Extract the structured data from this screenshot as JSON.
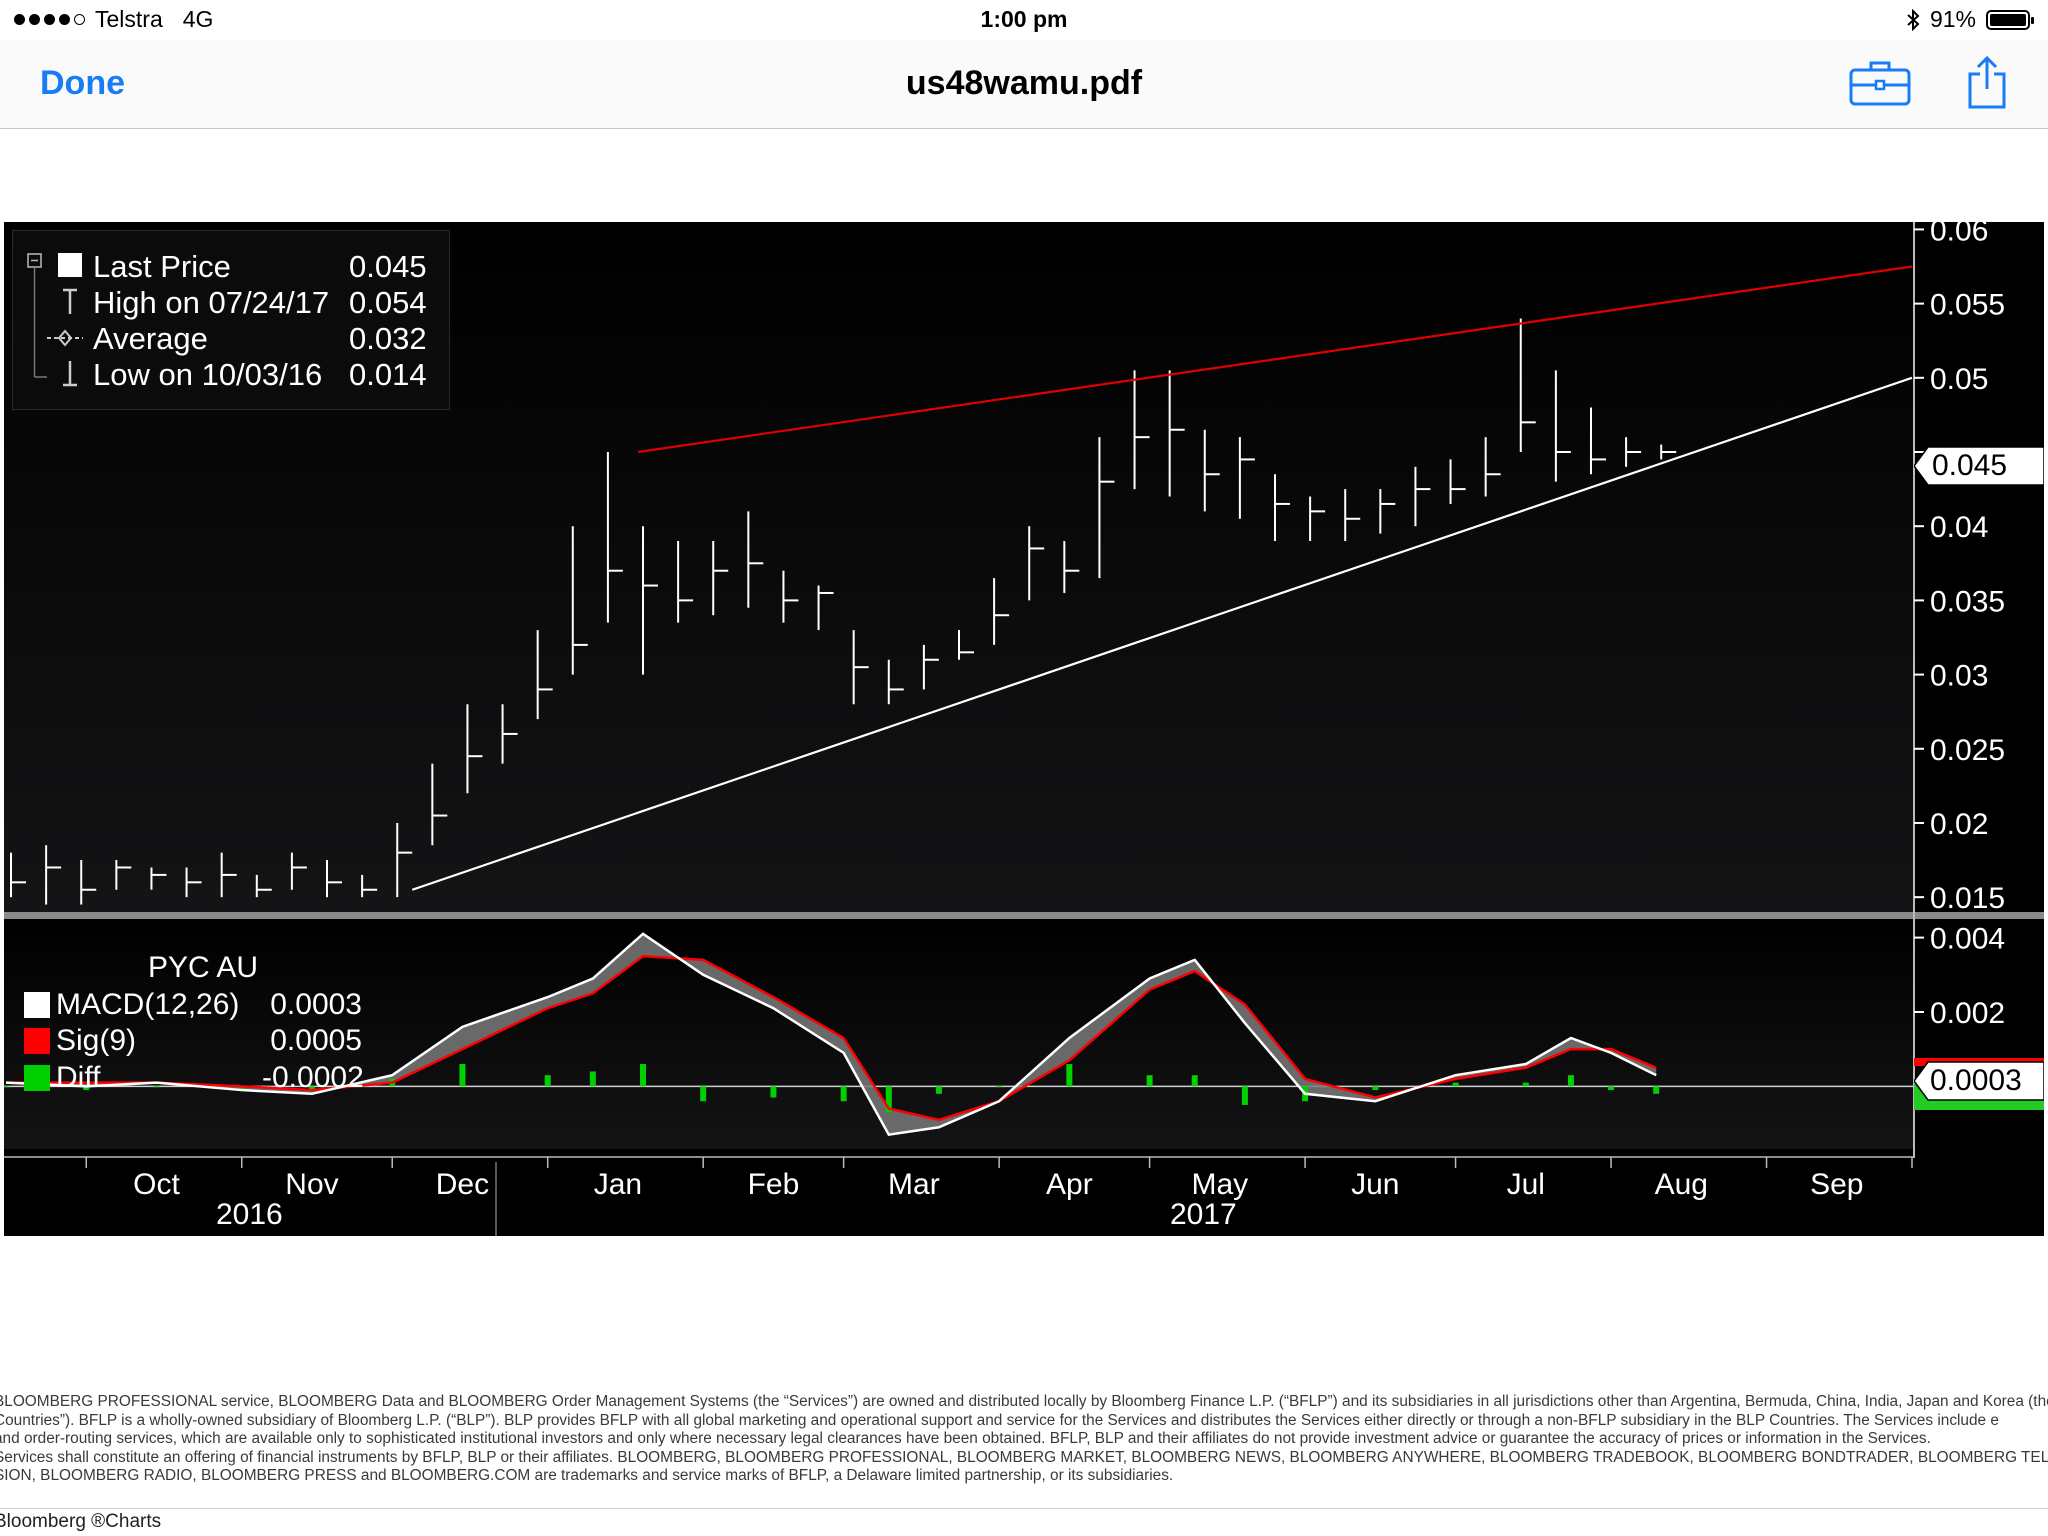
{
  "status_bar": {
    "carrier": "Telstra",
    "network": "4G",
    "time": "1:00 pm",
    "battery": "91%",
    "signal_dots_filled": 4,
    "icons": [
      "bluetooth-icon",
      "battery-icon"
    ]
  },
  "nav": {
    "done_label": "Done",
    "title": "us48wamu.pdf",
    "icons": [
      "toolbox-icon",
      "share-icon"
    ],
    "accent_color": "#1a7cf5"
  },
  "legend": {
    "rows": [
      {
        "label": "Last Price",
        "value": "0.045"
      },
      {
        "label": "High on 07/24/17",
        "value": "0.054"
      },
      {
        "label": "Average",
        "value": "0.032"
      },
      {
        "label": "Low on 10/03/16",
        "value": "0.014"
      }
    ]
  },
  "macd_legend": {
    "ticker": "PYC AU",
    "rows": [
      {
        "label": "MACD(12,26)",
        "value": "0.0003",
        "color": "#ffffff"
      },
      {
        "label": "Sig(9)",
        "value": "0.0005",
        "color": "#ff0000"
      },
      {
        "label": "Diff",
        "value": "-0.0002",
        "color": "#00d000"
      }
    ]
  },
  "tags": {
    "price_last": "0.045",
    "macd_last": "0.0003",
    "diff_last_partial": "-0.0002"
  },
  "chart_data": [
    {
      "type": "line",
      "title": "",
      "xlabel": "",
      "ylabel": "",
      "ylim": [
        0.014,
        0.0605
      ],
      "y_ticks": [
        "0.06",
        "0.055",
        "0.05",
        "0.045",
        "0.04",
        "0.035",
        "0.03",
        "0.025",
        "0.02",
        "0.015"
      ],
      "x_tick_labels": [
        "Oct",
        "Nov",
        "Dec",
        "Jan",
        "Feb",
        "Mar",
        "Apr",
        "May",
        "Jun",
        "Jul",
        "Aug",
        "Sep"
      ],
      "year_labels": [
        "2016",
        "2017"
      ],
      "x_domain": [
        "2016-09-15",
        "2017-09-30"
      ],
      "series": [
        {
          "name": "Last Price",
          "style": "high-low bars",
          "color": "#ffffff",
          "x": [
            "2016-09-16",
            "2016-09-23",
            "2016-09-30",
            "2016-10-07",
            "2016-10-14",
            "2016-10-21",
            "2016-10-28",
            "2016-11-04",
            "2016-11-11",
            "2016-11-18",
            "2016-11-25",
            "2016-12-02",
            "2016-12-09",
            "2016-12-16",
            "2016-12-23",
            "2016-12-30",
            "2017-01-06",
            "2017-01-13",
            "2017-01-20",
            "2017-01-27",
            "2017-02-03",
            "2017-02-10",
            "2017-02-17",
            "2017-02-24",
            "2017-03-03",
            "2017-03-10",
            "2017-03-17",
            "2017-03-24",
            "2017-03-31",
            "2017-04-07",
            "2017-04-14",
            "2017-04-21",
            "2017-04-28",
            "2017-05-05",
            "2017-05-12",
            "2017-05-19",
            "2017-05-26",
            "2017-06-02",
            "2017-06-09",
            "2017-06-16",
            "2017-06-23",
            "2017-06-30",
            "2017-07-07",
            "2017-07-14",
            "2017-07-21",
            "2017-07-28",
            "2017-08-04",
            "2017-08-11"
          ],
          "close": [
            0.016,
            0.017,
            0.0155,
            0.017,
            0.0165,
            0.016,
            0.0165,
            0.0155,
            0.017,
            0.016,
            0.0155,
            0.018,
            0.0205,
            0.0245,
            0.026,
            0.029,
            0.032,
            0.037,
            0.036,
            0.035,
            0.037,
            0.0375,
            0.035,
            0.0355,
            0.0305,
            0.029,
            0.031,
            0.0315,
            0.034,
            0.0385,
            0.037,
            0.043,
            0.046,
            0.0465,
            0.0435,
            0.0445,
            0.0415,
            0.041,
            0.0405,
            0.0415,
            0.0425,
            0.0425,
            0.0435,
            0.047,
            0.045,
            0.0445,
            0.045,
            0.045
          ],
          "high": [
            0.018,
            0.0185,
            0.0175,
            0.0175,
            0.017,
            0.017,
            0.018,
            0.0165,
            0.018,
            0.0175,
            0.0165,
            0.02,
            0.024,
            0.028,
            0.028,
            0.033,
            0.04,
            0.045,
            0.04,
            0.039,
            0.039,
            0.041,
            0.037,
            0.036,
            0.033,
            0.031,
            0.032,
            0.033,
            0.0365,
            0.04,
            0.039,
            0.046,
            0.0505,
            0.0505,
            0.0465,
            0.046,
            0.0435,
            0.042,
            0.0425,
            0.0425,
            0.044,
            0.0445,
            0.046,
            0.054,
            0.0505,
            0.048,
            0.046,
            0.0455
          ],
          "low": [
            0.015,
            0.0145,
            0.0145,
            0.0155,
            0.0155,
            0.015,
            0.015,
            0.015,
            0.0155,
            0.015,
            0.015,
            0.015,
            0.0185,
            0.022,
            0.024,
            0.027,
            0.03,
            0.0335,
            0.03,
            0.0335,
            0.034,
            0.0345,
            0.0335,
            0.033,
            0.028,
            0.028,
            0.029,
            0.031,
            0.032,
            0.035,
            0.0355,
            0.0365,
            0.0425,
            0.042,
            0.041,
            0.0405,
            0.039,
            0.039,
            0.039,
            0.0395,
            0.04,
            0.0415,
            0.042,
            0.045,
            0.043,
            0.0435,
            0.044,
            0.0445
          ]
        },
        {
          "name": "Resistance trendline",
          "color": "#e00000",
          "x": [
            "2017-01-19",
            "2017-09-30"
          ],
          "y": [
            0.045,
            0.0575
          ]
        },
        {
          "name": "Support trendline",
          "color": "#ffffff",
          "x": [
            "2016-12-05",
            "2017-09-30"
          ],
          "y": [
            0.0155,
            0.05
          ]
        }
      ]
    },
    {
      "type": "line",
      "title": "PYC AU",
      "ylim": [
        -0.0019,
        0.0045
      ],
      "y_ticks": [
        "0.004",
        "0.002"
      ],
      "series": [
        {
          "name": "MACD(12,26)",
          "color": "#ffffff",
          "x": [
            "2016-09-15",
            "2016-10-01",
            "2016-10-15",
            "2016-11-01",
            "2016-11-15",
            "2016-12-01",
            "2016-12-15",
            "2017-01-01",
            "2017-01-10",
            "2017-01-20",
            "2017-02-01",
            "2017-02-15",
            "2017-03-01",
            "2017-03-10",
            "2017-03-20",
            "2017-04-01",
            "2017-04-15",
            "2017-05-01",
            "2017-05-10",
            "2017-05-20",
            "2017-06-01",
            "2017-06-15",
            "2017-07-01",
            "2017-07-15",
            "2017-07-24",
            "2017-08-01",
            "2017-08-10"
          ],
          "y": [
            0.0001,
            0.0,
            0.0001,
            -0.0001,
            -0.0002,
            0.0003,
            0.0016,
            0.0024,
            0.0029,
            0.0041,
            0.003,
            0.0021,
            0.0009,
            -0.0013,
            -0.0011,
            -0.0004,
            0.0013,
            0.0029,
            0.0034,
            0.0017,
            -0.0002,
            -0.0004,
            0.0003,
            0.0006,
            0.0013,
            0.0009,
            0.0003
          ]
        },
        {
          "name": "Sig(9)",
          "color": "#ff0000",
          "x": [
            "2016-09-15",
            "2016-10-01",
            "2016-10-15",
            "2016-11-01",
            "2016-11-15",
            "2016-12-01",
            "2016-12-15",
            "2017-01-01",
            "2017-01-10",
            "2017-01-20",
            "2017-02-01",
            "2017-02-15",
            "2017-03-01",
            "2017-03-10",
            "2017-03-20",
            "2017-04-01",
            "2017-04-15",
            "2017-05-01",
            "2017-05-10",
            "2017-05-20",
            "2017-06-01",
            "2017-06-15",
            "2017-07-01",
            "2017-07-15",
            "2017-07-24",
            "2017-08-01",
            "2017-08-10"
          ],
          "y": [
            0.0001,
            0.0001,
            0.0001,
            0.0,
            -0.0001,
            0.0001,
            0.001,
            0.0021,
            0.0025,
            0.0035,
            0.0034,
            0.0024,
            0.0013,
            -0.0006,
            -0.0009,
            -0.0004,
            0.0007,
            0.0026,
            0.0031,
            0.0022,
            0.0002,
            -0.0003,
            0.0002,
            0.0005,
            0.001,
            0.001,
            0.0005
          ]
        },
        {
          "name": "Diff",
          "style": "histogram",
          "color": "#00d000",
          "x": [
            "2016-09-15",
            "2016-10-01",
            "2016-10-15",
            "2016-11-01",
            "2016-11-15",
            "2016-12-01",
            "2016-12-15",
            "2017-01-01",
            "2017-01-10",
            "2017-01-20",
            "2017-02-01",
            "2017-02-15",
            "2017-03-01",
            "2017-03-10",
            "2017-03-20",
            "2017-04-01",
            "2017-04-15",
            "2017-05-01",
            "2017-05-10",
            "2017-05-20",
            "2017-06-01",
            "2017-06-15",
            "2017-07-01",
            "2017-07-15",
            "2017-07-24",
            "2017-08-01",
            "2017-08-10"
          ],
          "y": [
            0.0,
            -0.0001,
            0.0,
            -0.0001,
            -0.0001,
            0.0002,
            0.0006,
            0.0003,
            0.0004,
            0.0006,
            -0.0004,
            -0.0003,
            -0.0004,
            -0.0007,
            -0.0002,
            0.0,
            0.0006,
            0.0003,
            0.0003,
            -0.0005,
            -0.0004,
            -0.0001,
            0.0001,
            0.0001,
            0.0003,
            -0.0001,
            -0.0002
          ]
        }
      ]
    }
  ],
  "footer": {
    "disclaimer_lines": [
      "BLOOMBERG PROFESSIONAL service, BLOOMBERG Data and BLOOMBERG Order Management Systems (the “Services”) are owned and distributed locally by Bloomberg Finance L.P. (“BFLP”) and its subsidiaries in all jurisdictions other than Argentina, Bermuda, China, India, Japan and Korea (the “BLP",
      "Countries”). BFLP is a wholly-owned subsidiary of Bloomberg L.P. (“BLP”). BLP provides BFLP with all global marketing and operational support and service for the Services and distributes the Services either directly or through a non-BFLP subsidiary in the BLP Countries. The Services include e",
      "and order-routing services, which are available only to sophisticated institutional investors and only where necessary legal clearances have been obtained. BFLP, BLP and their affiliates do not provide investment advice or guarantee the accuracy of prices or information in the Services.",
      "Services shall constitute an offering of financial instruments by BFLP, BLP or their affiliates. BLOOMBERG, BLOOMBERG PROFESSIONAL, BLOOMBERG MARKET, BLOOMBERG NEWS, BLOOMBERG ANYWHERE, BLOOMBERG TRADEBOOK, BLOOMBERG BONDTRADER, BLOOMBERG TELEVI",
      "SION, BLOOMBERG RADIO, BLOOMBERG PRESS and BLOOMBERG.COM are trademarks and service marks of BFLP, a Delaware limited partnership, or its subsidiaries."
    ],
    "brand": "Bloomberg ®Charts"
  }
}
